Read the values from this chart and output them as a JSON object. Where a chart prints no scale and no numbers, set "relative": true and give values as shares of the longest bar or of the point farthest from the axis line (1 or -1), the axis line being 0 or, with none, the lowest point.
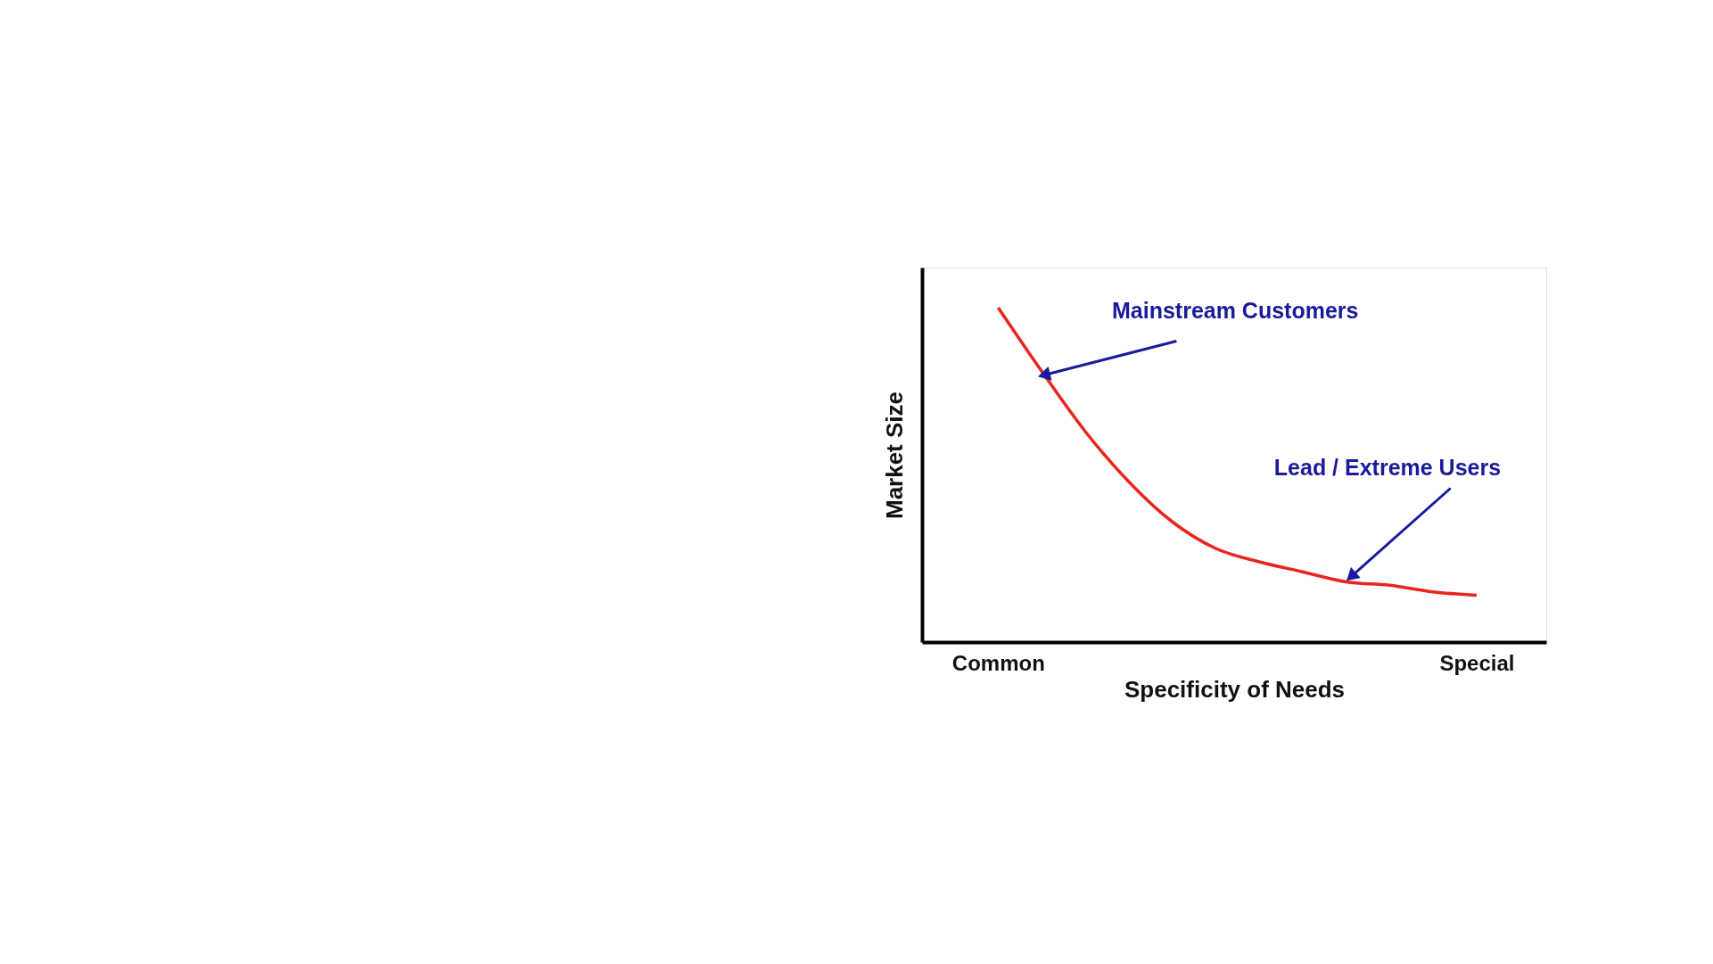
{
  "chart_data": {
    "type": "line",
    "relative": true,
    "xlabel": "Specificity of Needs",
    "ylabel": "Market Size",
    "categories": [
      "Common",
      null,
      null,
      null,
      null,
      null,
      null,
      null,
      null,
      null,
      null,
      "Special"
    ],
    "series": [
      {
        "color": "#e8251f",
        "values": [
          1,
          0.81,
          0.63,
          0.48,
          0.36,
          0.28,
          0.24,
          0.21,
          0.18,
          0.17,
          0.15,
          0.14
        ]
      }
    ],
    "annotations": [
      "Mainstream Customers",
      "Lead / Extreme Users"
    ],
    "grid": false,
    "marker": "none",
    "line_style": "solid"
  }
}
